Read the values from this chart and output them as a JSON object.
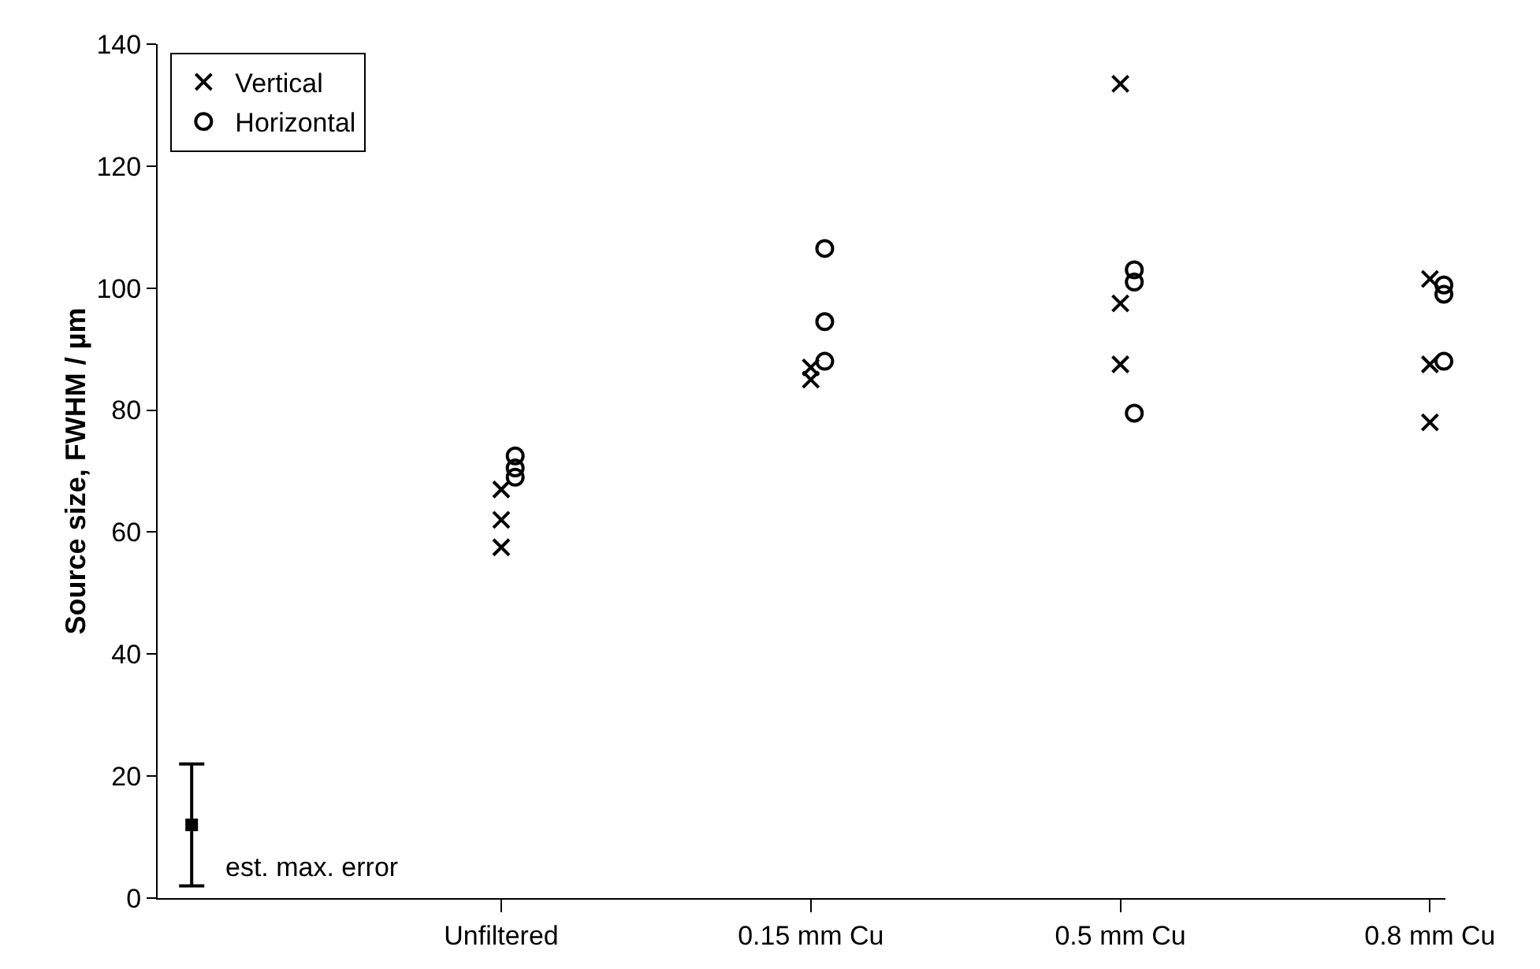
{
  "chart_data": {
    "type": "scatter",
    "ylabel": "Source size, FWHM / µm",
    "categories": [
      null,
      "Unfiltered",
      "0.15 mm Cu",
      "0.5 mm Cu",
      "0.8 mm Cu"
    ],
    "ylim": [
      0,
      140
    ],
    "yticks": [
      0,
      20,
      40,
      60,
      80,
      100,
      120,
      140
    ],
    "grid": false,
    "legend": "top left",
    "series": [
      {
        "name": "Vertical",
        "color": "#000000",
        "marker": "cross",
        "x": [
          "Unfiltered",
          "Unfiltered",
          "Unfiltered",
          "0.15 mm Cu",
          "0.15 mm Cu",
          "0.5 mm Cu",
          "0.5 mm Cu",
          "0.5 mm Cu",
          "0.8 mm Cu",
          "0.8 mm Cu",
          "0.8 mm Cu"
        ],
        "values": [
          57.5,
          62,
          67,
          87,
          85,
          133.5,
          97.5,
          87.5,
          101.5,
          87.5,
          78
        ]
      },
      {
        "name": "Horizontal",
        "color": "#000000",
        "marker": "circle",
        "x": [
          "Unfiltered",
          "Unfiltered",
          "Unfiltered",
          "0.15 mm Cu",
          "0.15 mm Cu",
          "0.15 mm Cu",
          "0.5 mm Cu",
          "0.5 mm Cu",
          "0.5 mm Cu",
          "0.8 mm Cu",
          "0.8 mm Cu",
          "0.8 mm Cu"
        ],
        "values": [
          69,
          72.5,
          70.5,
          106.5,
          94.5,
          88,
          103,
          101,
          79.5,
          100.5,
          99,
          88
        ]
      },
      {
        "color": "#000000",
        "marker": "square",
        "values": [
          12,
          null,
          null,
          null,
          null
        ],
        "errors": [
          10,
          null,
          null,
          null,
          null
        ]
      }
    ],
    "annotations": [
      "est. max. error"
    ]
  }
}
